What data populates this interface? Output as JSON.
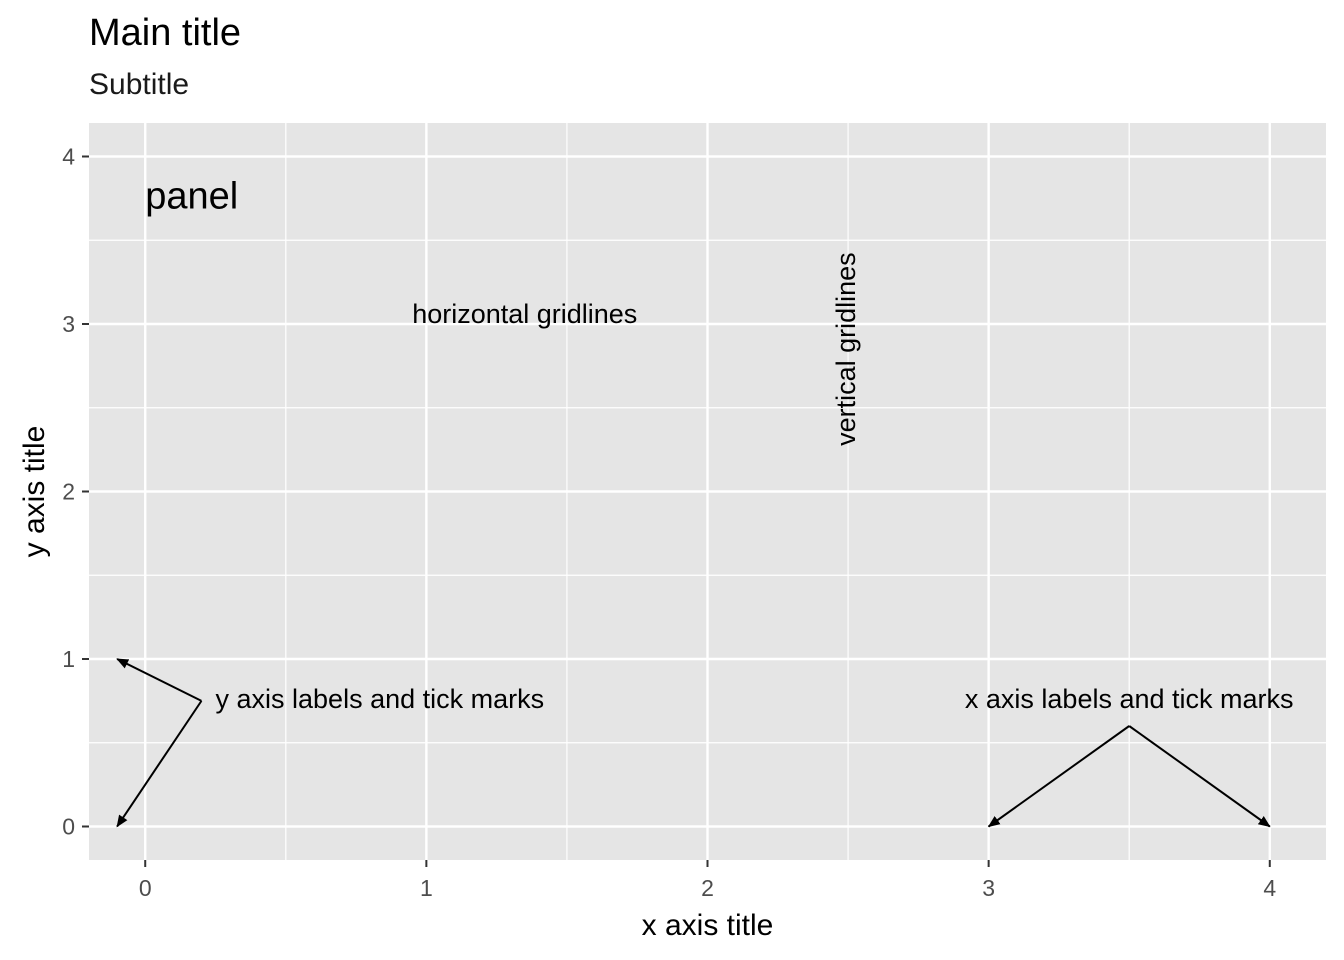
{
  "chart_data": {
    "type": "scatter",
    "title": "Main title",
    "subtitle": "Subtitle",
    "xlabel": "x axis title",
    "ylabel": "y axis title",
    "xlim": [
      -0.2,
      4.2
    ],
    "ylim": [
      -0.2,
      4.2
    ],
    "x_ticks": [
      0,
      1,
      2,
      3,
      4
    ],
    "y_ticks": [
      0,
      1,
      2,
      3,
      4
    ],
    "x_tick_labels": [
      "0",
      "1",
      "2",
      "3",
      "4"
    ],
    "y_tick_labels": [
      "0",
      "1",
      "2",
      "3",
      "4"
    ],
    "grid": true,
    "background": "#e5e5e5",
    "grid_color": "#ffffff",
    "annotations": [
      {
        "text": "panel",
        "x": 0,
        "y": 3.75,
        "anchor": "start",
        "size": "large"
      },
      {
        "text": "horizontal gridlines",
        "x": 1.35,
        "y": 3.05,
        "anchor": "middle"
      },
      {
        "text": "vertical gridlines",
        "x": 2.5,
        "y": 2.85,
        "anchor": "middle",
        "rotate": -90
      },
      {
        "text": "y axis labels and tick marks",
        "x": 0.25,
        "y": 0.75,
        "anchor": "start"
      },
      {
        "text": "x axis labels and tick marks",
        "x": 3.5,
        "y": 0.75,
        "anchor": "middle"
      }
    ],
    "arrows": [
      {
        "from": [
          0.2,
          0.75
        ],
        "to": [
          -0.1,
          1
        ]
      },
      {
        "from": [
          0.2,
          0.75
        ],
        "to": [
          -0.1,
          0
        ]
      },
      {
        "from": [
          3.5,
          0.6
        ],
        "to": [
          3,
          0
        ]
      },
      {
        "from": [
          3.5,
          0.6
        ],
        "to": [
          4,
          0
        ]
      }
    ]
  }
}
